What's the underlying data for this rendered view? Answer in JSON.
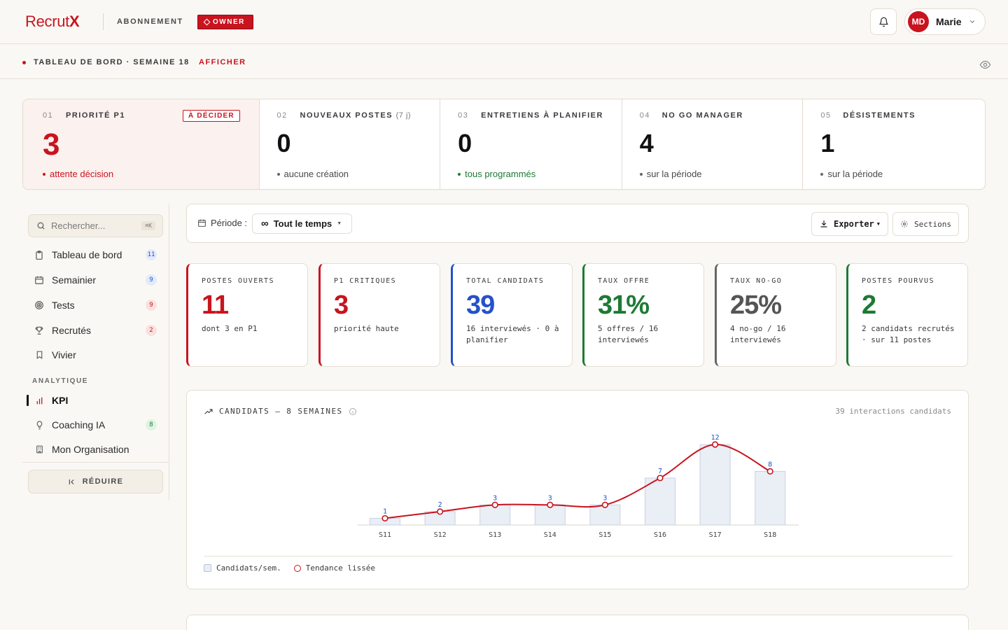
{
  "header": {
    "logo_main": "Recrut",
    "logo_accent": "X",
    "subscription_label": "ABONNEMENT",
    "role_badge": "OWNER",
    "user_initials": "MD",
    "user_name": "Marie"
  },
  "subbar": {
    "title": "TABLEAU DE BORD · SEMAINE 18",
    "action": "AFFICHER"
  },
  "alerts": [
    {
      "num": "01",
      "label": "PRIORITÉ P1",
      "extra": "",
      "badge": "À DÉCIDER",
      "value": "3",
      "note": "attente décision",
      "tone": "red"
    },
    {
      "num": "02",
      "label": "NOUVEAUX POSTES",
      "extra": "(7 j)",
      "value": "0",
      "note": "aucune création",
      "tone": "neutral"
    },
    {
      "num": "03",
      "label": "ENTRETIENS À PLANIFIER",
      "extra": "",
      "value": "0",
      "note": "tous programmés",
      "tone": "green"
    },
    {
      "num": "04",
      "label": "NO GO MANAGER",
      "extra": "",
      "value": "4",
      "note": "sur la période",
      "tone": "neutral"
    },
    {
      "num": "05",
      "label": "DÉSISTEMENTS",
      "extra": "",
      "value": "1",
      "note": "sur la période",
      "tone": "neutral"
    }
  ],
  "sidebar": {
    "search_placeholder": "Rechercher...",
    "search_shortcut": "⌘K",
    "items": [
      {
        "label": "Tableau de bord",
        "count": "11",
        "icon": "clipboard-icon"
      },
      {
        "label": "Semainier",
        "count": "9",
        "icon": "calendar-icon"
      },
      {
        "label": "Tests",
        "count": "9",
        "icon": "target-icon"
      },
      {
        "label": "Recrutés",
        "count": "2",
        "icon": "trophy-icon"
      },
      {
        "label": "Vivier",
        "count": "",
        "icon": "bookmark-icon"
      }
    ],
    "section_label": "ANALYTIQUE",
    "analytics_items": [
      {
        "label": "KPI",
        "count": "",
        "icon": "bar-chart-icon"
      },
      {
        "label": "Coaching IA",
        "count": "8",
        "icon": "lightbulb-icon"
      },
      {
        "label": "Mon Organisation",
        "count": "",
        "icon": "building-icon"
      }
    ],
    "reduce_label": "RÉDUIRE"
  },
  "toolbar": {
    "period_label": "Période :",
    "period_value": "Tout le temps",
    "export_label": "Exporter",
    "sections_label": "Sections"
  },
  "kpis": [
    {
      "label": "POSTES OUVERTS",
      "value": "11",
      "sub": "dont 3 en P1",
      "color": "#c8141e"
    },
    {
      "label": "P1 CRITIQUES",
      "value": "3",
      "sub": "priorité haute",
      "color": "#c8141e"
    },
    {
      "label": "TOTAL CANDIDATS",
      "value": "39",
      "sub": "16 interviewés · 0 à planifier",
      "color": "#2452c9"
    },
    {
      "label": "TAUX OFFRE",
      "value": "31%",
      "sub": "5 offres / 16 interviewés",
      "color": "#1d7a34"
    },
    {
      "label": "TAUX NO-GO",
      "value": "25%",
      "sub": "4 no-go / 16 interviewés",
      "color": "#555555"
    },
    {
      "label": "POSTES POURVUS",
      "value": "2",
      "sub": "2 candidats recrutés · sur 11 postes",
      "color": "#1d7a34"
    }
  ],
  "chart_card": {
    "title": "CANDIDATS — 8 SEMAINES",
    "right_note": "39 interactions candidats"
  },
  "chart_data": {
    "type": "bar",
    "categories": [
      "S11",
      "S12",
      "S13",
      "S14",
      "S15",
      "S16",
      "S17",
      "S18"
    ],
    "series": [
      {
        "name": "Candidats/sem.",
        "type": "bar",
        "values": [
          1,
          2,
          3,
          3,
          3,
          7,
          12,
          8
        ]
      },
      {
        "name": "Tendance lissée",
        "type": "line",
        "values": [
          1,
          2,
          3,
          3,
          3,
          7,
          12,
          8
        ]
      }
    ],
    "data_labels": true,
    "legend_position": "bottom-left",
    "grid": false,
    "colors": {
      "bar_fill": "#eaeef5",
      "bar_stroke": "#c9d2e3",
      "line": "#c8141e",
      "label": "#2452c9"
    }
  },
  "colors": {
    "brand": "#c8141e",
    "positive": "#1d7a34",
    "info": "#2452c9"
  }
}
